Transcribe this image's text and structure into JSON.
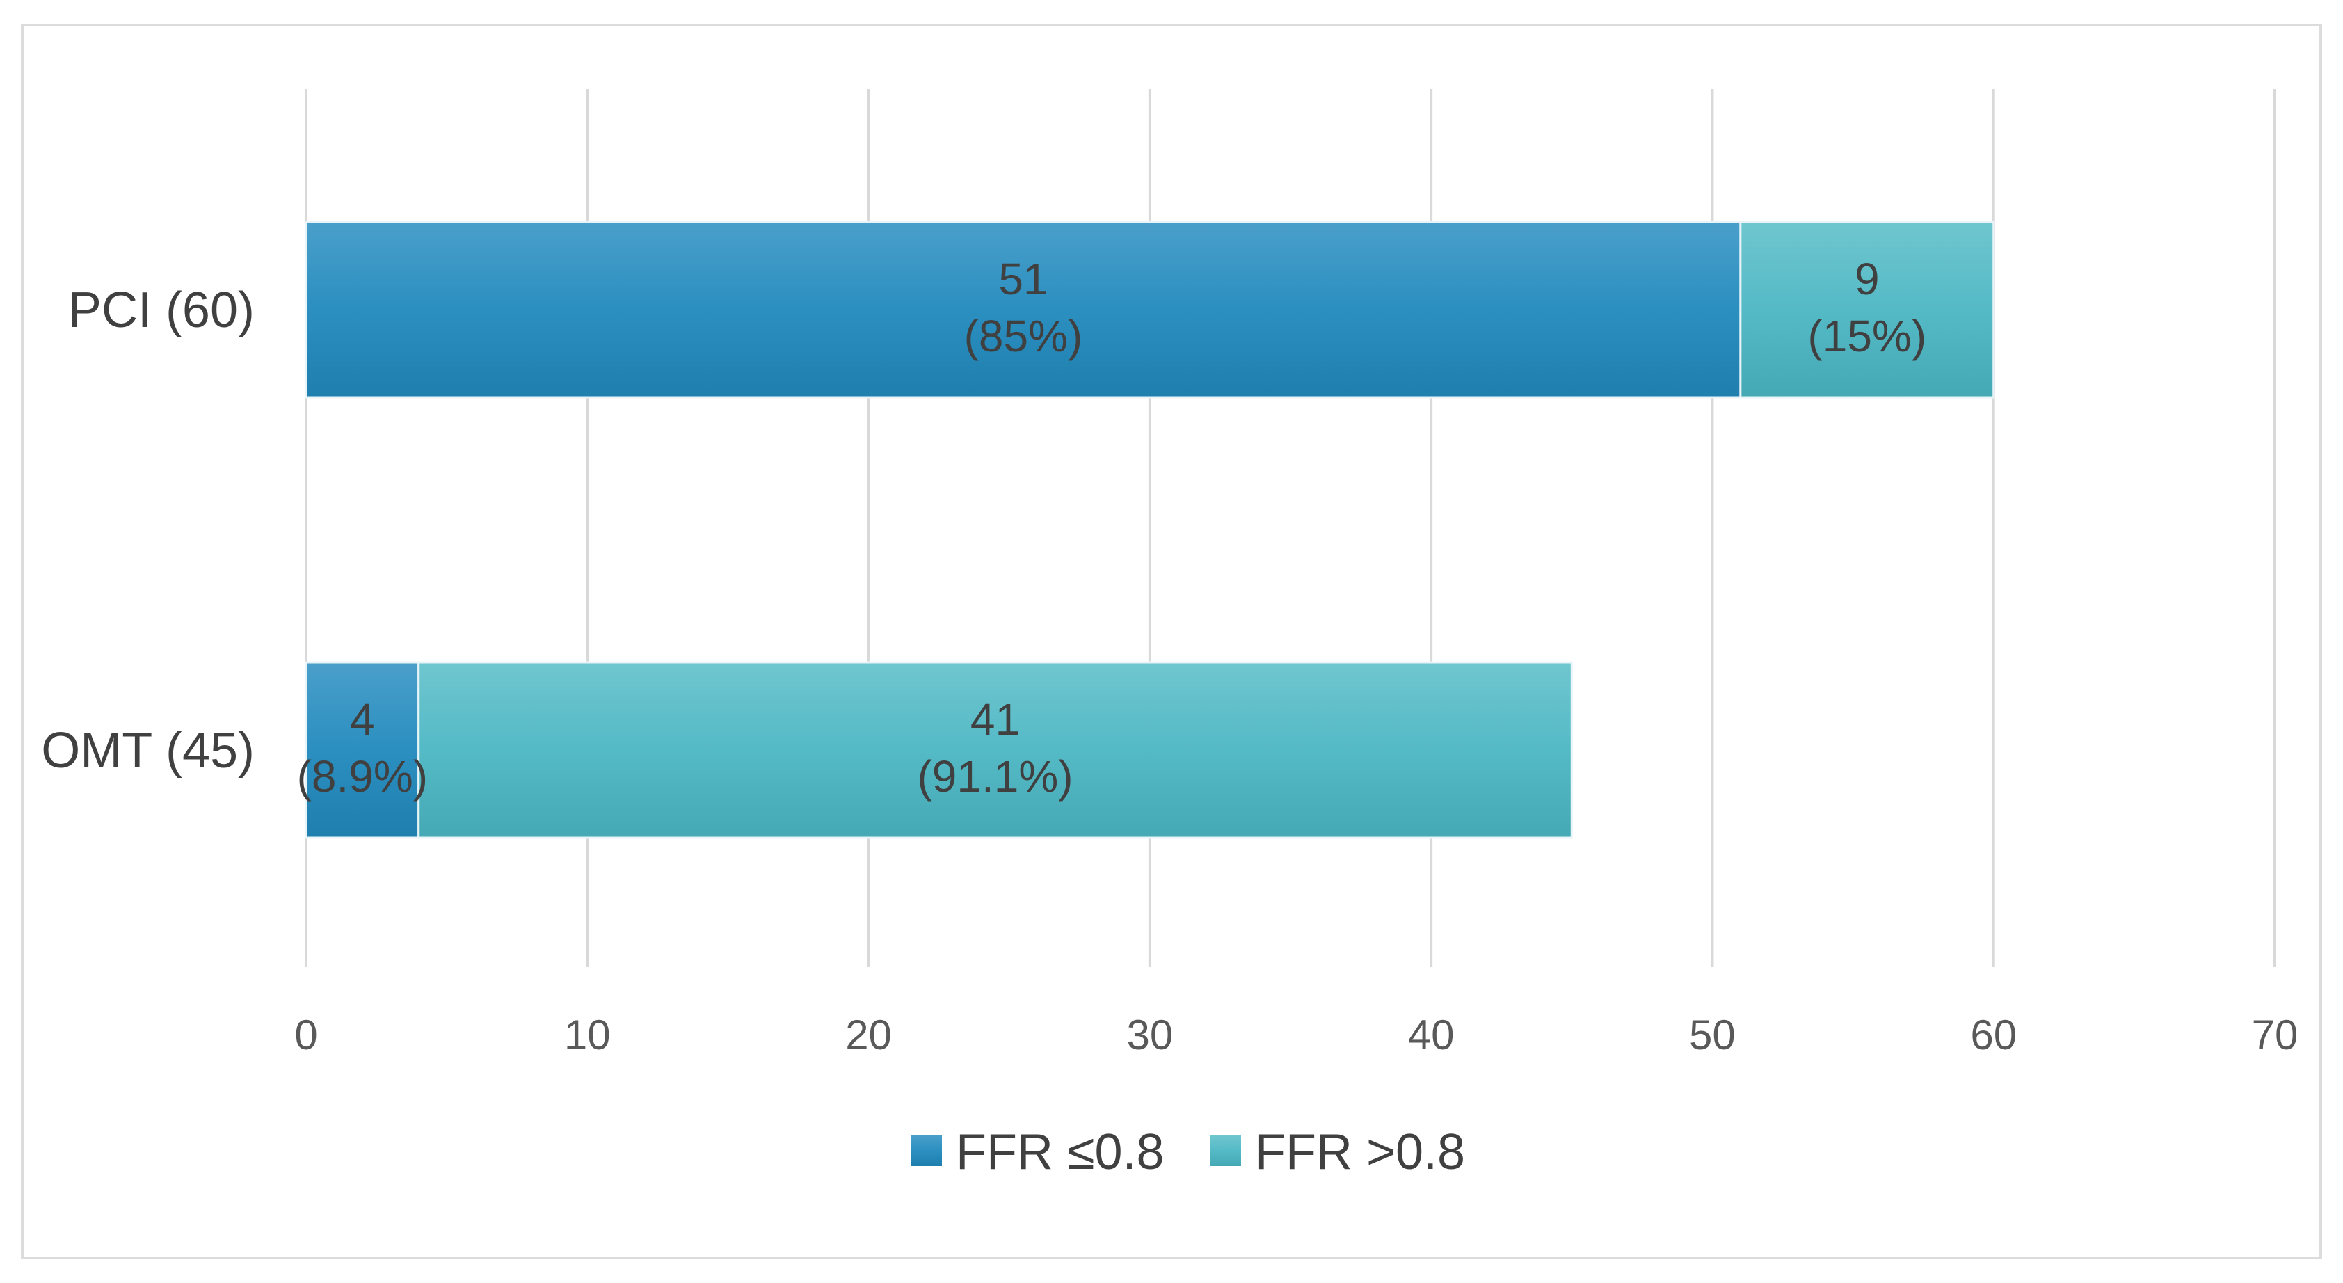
{
  "chart_data": {
    "type": "bar",
    "orientation": "horizontal",
    "stacked": true,
    "categories": [
      "PCI (60)",
      "OMT (45)"
    ],
    "series": [
      {
        "name": "FFR ≤0.8",
        "values": [
          51,
          4
        ],
        "labels": [
          "(85%)",
          "(8.9%)"
        ],
        "color": "#2b8cba"
      },
      {
        "name": "FFR >0.8",
        "values": [
          9,
          41
        ],
        "labels": [
          "(15%)",
          "(91.1%)"
        ],
        "color": "#52b8c4"
      }
    ],
    "xlim": [
      0,
      70
    ],
    "xticks": [
      0,
      10,
      20,
      30,
      40,
      50,
      60,
      70
    ],
    "grid": true,
    "legend_position": "bottom"
  }
}
